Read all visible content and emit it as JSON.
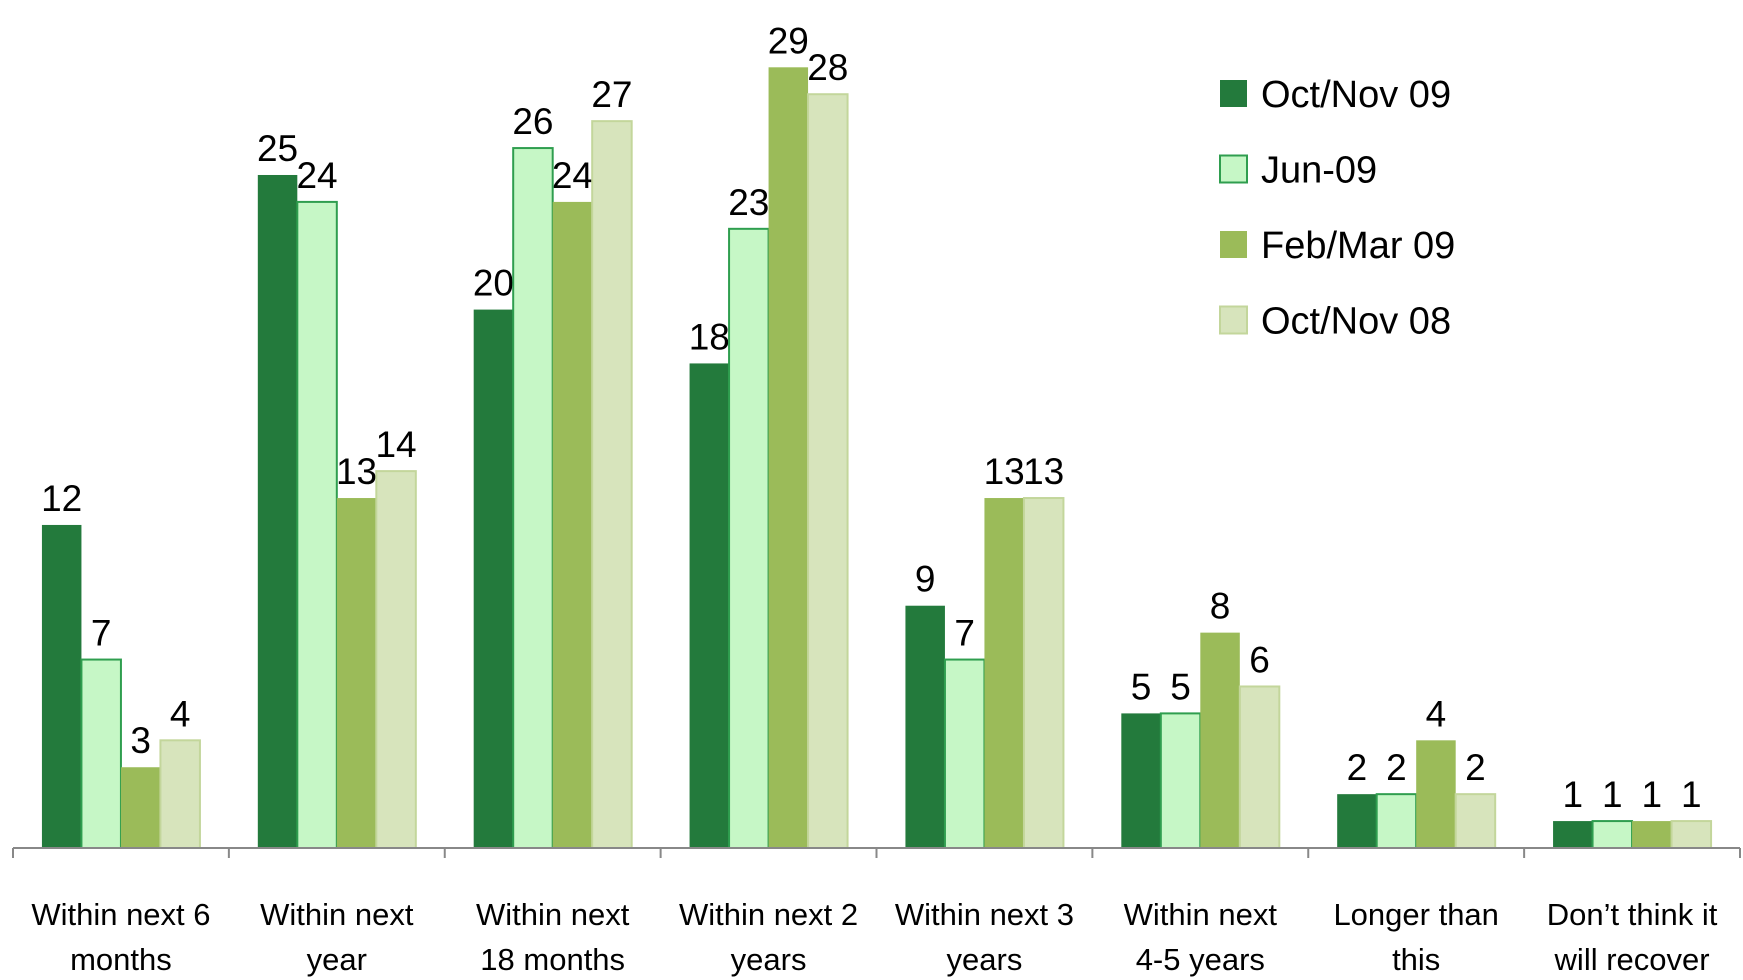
{
  "chart_data": {
    "type": "bar",
    "categories": [
      [
        "Within next 6",
        "months"
      ],
      [
        "Within next",
        "year"
      ],
      [
        "Within next",
        "18 months"
      ],
      [
        "Within next 2",
        "years"
      ],
      [
        "Within next 3",
        "years"
      ],
      [
        "Within next",
        "4-5 years"
      ],
      [
        "Longer than",
        "this"
      ],
      [
        "Don’t think it",
        "will recover"
      ]
    ],
    "series": [
      {
        "name": "Oct/Nov 09",
        "color": "#237a3c",
        "values": [
          12,
          25,
          20,
          18,
          9,
          5,
          2,
          1
        ]
      },
      {
        "name": "Jun-09",
        "color": "#c6f7c6",
        "values": [
          7,
          24,
          26,
          23,
          7,
          5,
          2,
          1
        ]
      },
      {
        "name": "Feb/Mar 09",
        "color": "#9bbb59",
        "values": [
          3,
          13,
          24,
          29,
          13,
          8,
          4,
          1
        ]
      },
      {
        "name": "Oct/Nov 08",
        "color": "#d7e4bc",
        "values": [
          4,
          14,
          27,
          28,
          13,
          6,
          2,
          1
        ]
      }
    ],
    "ylim": [
      0,
      31.5
    ],
    "legend": "upper right"
  }
}
